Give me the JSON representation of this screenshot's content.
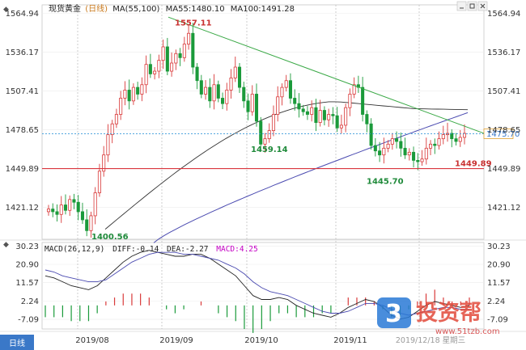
{
  "header": {
    "title": "现货黄金",
    "period": "日线",
    "ma_label": "MA(55,100)",
    "ma55_label": "MA55:1480.10",
    "ma100_label": "MA100:1491.28"
  },
  "macd_header": {
    "macd_label": "MACD(26,12,9)",
    "diff_label": "DIFF:-0.14",
    "dea_label": "DEA:-2.27",
    "macd_value_label": "MACD:4.25"
  },
  "price_axis": {
    "ticks": [
      "1564.94",
      "1536.17",
      "1507.41",
      "1478.65",
      "1449.89",
      "1421.12"
    ],
    "current_price": "1475.70"
  },
  "macd_axis": {
    "ticks": [
      "30.23",
      "20.90",
      "11.57",
      "2.24",
      "-7.09"
    ]
  },
  "date_axis": {
    "labels": [
      "2019/08",
      "2019/09",
      "2019/10",
      "2019/11"
    ],
    "cursor_date": "2019/12/18 星期三"
  },
  "annotations": {
    "high": "1557.11",
    "low_aug": "1400.56",
    "low_oct": "1459.14",
    "low_nov": "1445.70",
    "support": "1449.89"
  },
  "watermark": {
    "brand": "投资帮",
    "url": "www.51tzb.com"
  },
  "colors": {
    "up": "#d93a3a",
    "down": "#1a9a3a",
    "ma55": "#333333",
    "ma100": "#4a4ab0",
    "trendline": "#39a845",
    "support": "#d9363e",
    "price_line": "#3a9ad9",
    "macd_pos": "#d93a3a",
    "macd_neg": "#1a9a3a",
    "macd_label": "#c400c4"
  },
  "chart_data": {
    "type": "candlestick",
    "title": "现货黄金",
    "x_range": [
      "2019-07-08",
      "2019-12-18"
    ],
    "ylim": [
      1400,
      1570
    ],
    "key_points": [
      {
        "date": "2019-08-01",
        "label": "1400.56",
        "value": 1400.56
      },
      {
        "date": "2019-09-04",
        "label": "1557.11",
        "value": 1557.11
      },
      {
        "date": "2019-10-01",
        "label": "1459.14",
        "value": 1459.14
      },
      {
        "date": "2019-11-12",
        "label": "1445.70",
        "value": 1445.7
      }
    ],
    "close": [
      1420,
      1418,
      1416,
      1423,
      1419,
      1427,
      1425,
      1418,
      1412,
      1404,
      1415,
      1432,
      1448,
      1460,
      1475,
      1483,
      1490,
      1502,
      1508,
      1500,
      1510,
      1505,
      1512,
      1527,
      1520,
      1522,
      1530,
      1540,
      1522,
      1528,
      1535,
      1532,
      1542,
      1550,
      1525,
      1515,
      1505,
      1510,
      1500,
      1512,
      1502,
      1498,
      1508,
      1517,
      1525,
      1510,
      1500,
      1492,
      1505,
      1485,
      1468,
      1472,
      1478,
      1490,
      1503,
      1510,
      1515,
      1502,
      1498,
      1494,
      1492,
      1490,
      1495,
      1484,
      1493,
      1486,
      1490,
      1489,
      1480,
      1482,
      1495,
      1505,
      1512,
      1510,
      1490,
      1483,
      1467,
      1463,
      1460,
      1465,
      1468,
      1472,
      1470,
      1465,
      1460,
      1462,
      1456,
      1455,
      1457,
      1465,
      1468,
      1467,
      1472,
      1475,
      1476,
      1472,
      1470,
      1473,
      1476
    ],
    "support_level": 1449.89,
    "current_price": 1475.7,
    "series": [
      {
        "name": "MA55",
        "values": [
          1450,
          1480.1
        ]
      },
      {
        "name": "MA100",
        "values": [
          1430,
          1491.28
        ]
      }
    ],
    "macd": {
      "params": "26,12,9",
      "diff": -0.14,
      "dea": -2.27,
      "macd": 4.25,
      "ylim": [
        -12,
        32
      ],
      "diff_values": [
        15,
        14,
        12,
        10,
        9,
        8,
        10,
        14,
        18,
        22,
        25,
        27,
        28,
        27,
        26,
        25,
        25,
        26,
        26,
        24,
        21,
        18,
        15,
        10,
        5,
        3,
        3,
        4,
        3,
        0,
        -2,
        -4,
        -5,
        -6,
        -4,
        -1,
        1,
        3,
        2,
        -1,
        -5,
        -7,
        -6,
        -3,
        0,
        2,
        1,
        0,
        -1,
        0
      ],
      "dea_values": [
        18,
        17,
        15,
        14,
        13,
        12,
        12,
        13,
        16,
        19,
        22,
        24,
        26,
        27,
        27,
        27,
        26,
        26,
        25,
        24,
        23,
        21,
        19,
        16,
        12,
        9,
        7,
        6,
        5,
        3,
        1,
        -1,
        -3,
        -4,
        -4,
        -3,
        -1,
        1,
        1,
        0,
        -2,
        -4,
        -5,
        -4,
        -3,
        -2,
        -1,
        -1,
        -2,
        -2
      ]
    },
    "grid": true,
    "legend": "top-left"
  }
}
